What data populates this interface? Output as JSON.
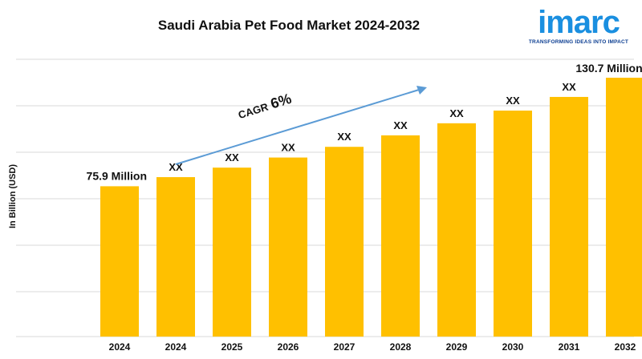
{
  "header": {
    "title": "Saudi Arabia Pet Food Market 2024-2032"
  },
  "logo": {
    "word": "imarc",
    "tagline": "TRANSFORMING IDEAS INTO IMPACT"
  },
  "annotation": {
    "cagr_label": "CAGR",
    "cagr_value": "6%"
  },
  "colors": {
    "bar": "#FFC000",
    "arrow": "#5B9BD5",
    "grid": "#D9D9D9",
    "brand": "#1A8FE0"
  },
  "chart_data": {
    "type": "bar",
    "title": "Saudi Arabia Pet Food Market 2024-2032",
    "ylabel": "In Billion (USD)",
    "xlabel": "",
    "categories": [
      "2024",
      "2024",
      "2025",
      "2026",
      "2027",
      "2028",
      "2029",
      "2030",
      "2031",
      "2032"
    ],
    "values": [
      75.9,
      80.5,
      85.3,
      90.4,
      95.8,
      101.6,
      107.7,
      114.1,
      121.0,
      130.7
    ],
    "data_labels": [
      "75.9 Million",
      "XX",
      "XX",
      "XX",
      "XX",
      "XX",
      "XX",
      "XX",
      "XX",
      "130.7 Million"
    ],
    "ylim": [
      0,
      140
    ],
    "grid": true,
    "legend": "none"
  }
}
